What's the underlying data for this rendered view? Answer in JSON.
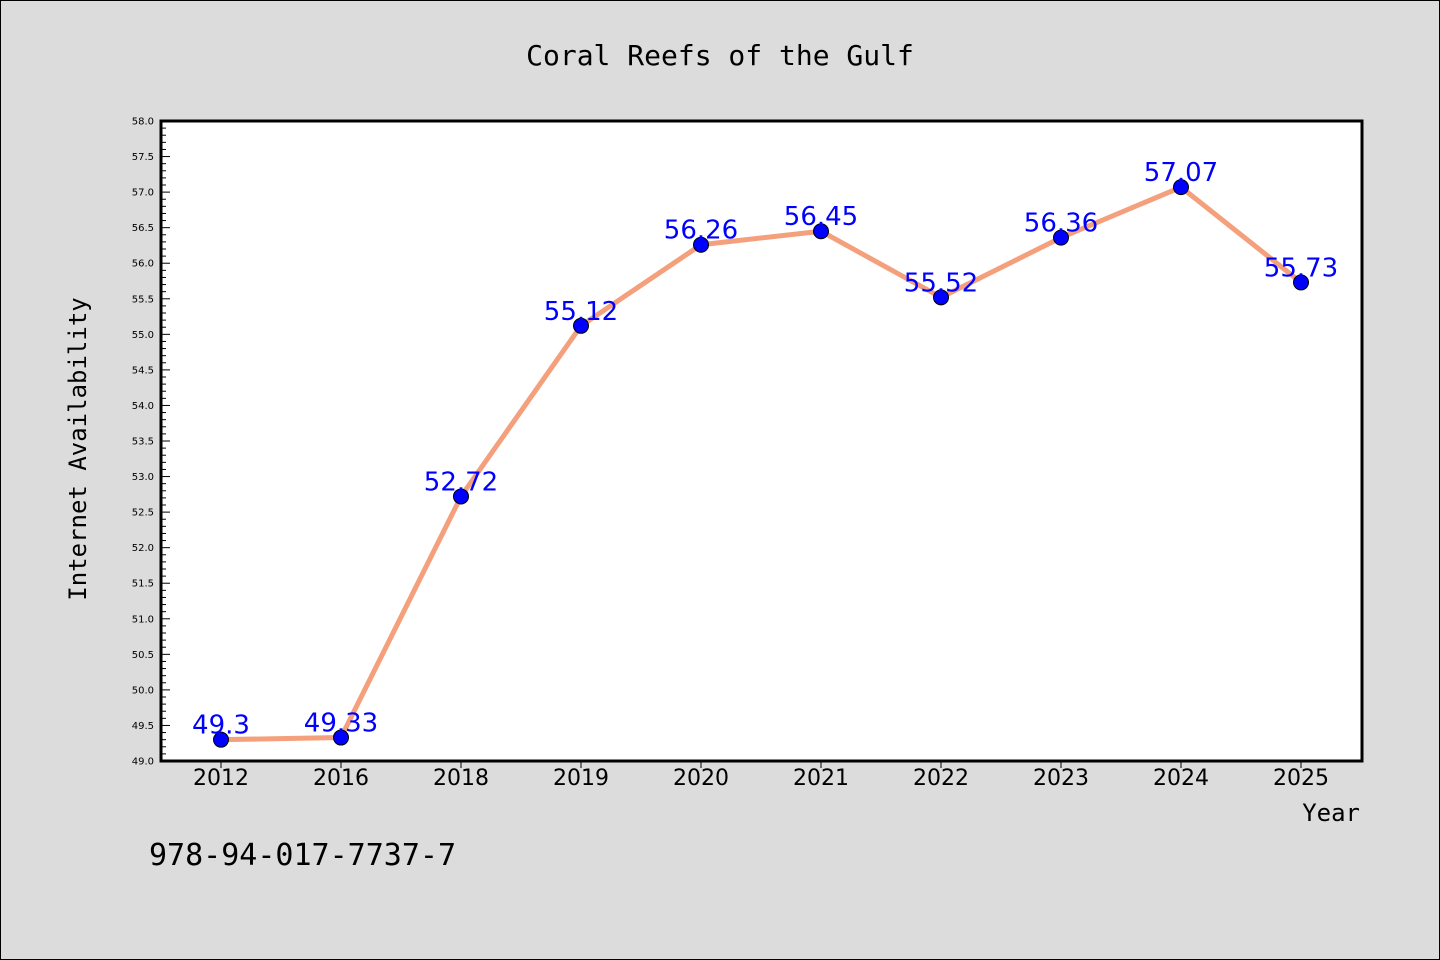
{
  "chart_data": {
    "type": "line",
    "title": "Coral Reefs of the Gulf",
    "xlabel": "Year",
    "ylabel": "Internet Availability",
    "categories": [
      "2012",
      "2016",
      "2018",
      "2019",
      "2020",
      "2021",
      "2022",
      "2023",
      "2024",
      "2025"
    ],
    "values": [
      49.3,
      49.33,
      52.72,
      55.12,
      56.26,
      56.45,
      55.52,
      56.36,
      57.07,
      55.73
    ],
    "data_labels": [
      "49.3",
      "49.33",
      "52.72",
      "55.12",
      "56.26",
      "56.45",
      "55.52",
      "56.36",
      "57.07",
      "55.73"
    ],
    "ylim": [
      49.0,
      58.0
    ],
    "yticks": [
      "49.0",
      "49.5",
      "50.0",
      "50.5",
      "51.0",
      "51.5",
      "52.0",
      "52.5",
      "53.0",
      "53.5",
      "54.0",
      "54.5",
      "55.0",
      "55.5",
      "56.0",
      "56.5",
      "57.0",
      "57.5",
      "58.0"
    ],
    "grid": false,
    "legend": "none"
  },
  "footer": {
    "isbn": "978-94-017-7737-7"
  },
  "colors": {
    "background": "#dcdcdc",
    "plot_background": "#ffffff",
    "line": "#f4a07c",
    "marker": "#0000ff",
    "data_label": "#0000ff"
  }
}
